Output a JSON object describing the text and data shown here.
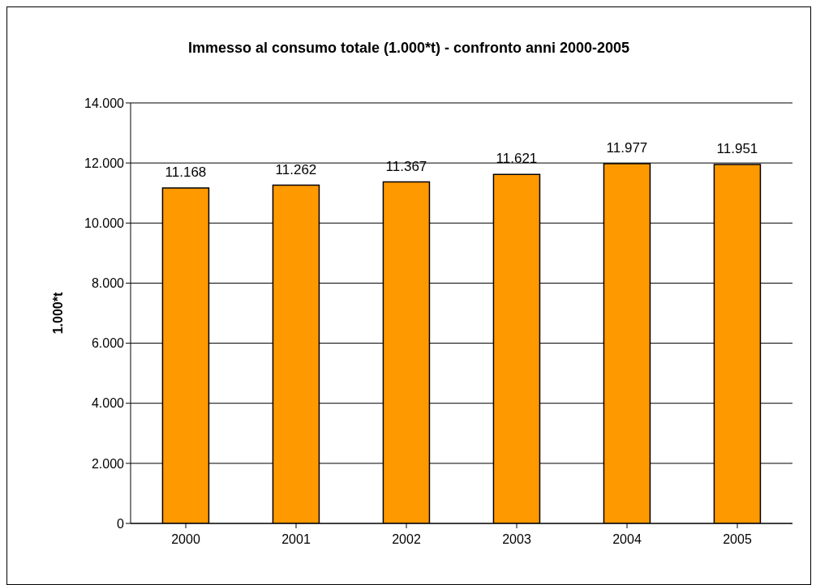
{
  "chart_data": {
    "type": "bar",
    "title": "Immesso al consumo totale (1.000*t) - confronto anni 2000-2005",
    "ylabel": "1.000*t",
    "categories": [
      "2000",
      "2001",
      "2002",
      "2003",
      "2004",
      "2005"
    ],
    "values": [
      11168,
      11262,
      11367,
      11621,
      11977,
      11951
    ],
    "value_labels": [
      "11.168",
      "11.262",
      "11.367",
      "11.621",
      "11.977",
      "11.951"
    ],
    "color": "#ff9900",
    "ylim": [
      0,
      14000
    ],
    "yticks": [
      0,
      {
        "value": 2000,
        "label": "2.000"
      },
      {
        "value": 4000,
        "label": "4.000"
      },
      {
        "value": 6000,
        "label": "6.000"
      },
      {
        "value": 8000,
        "label": "8.000"
      },
      {
        "value": 10000,
        "label": "10.000"
      },
      {
        "value": 12000,
        "label": "12.000"
      },
      {
        "value": 14000,
        "label": "14.000"
      }
    ],
    "grid": "y",
    "legend": false
  }
}
